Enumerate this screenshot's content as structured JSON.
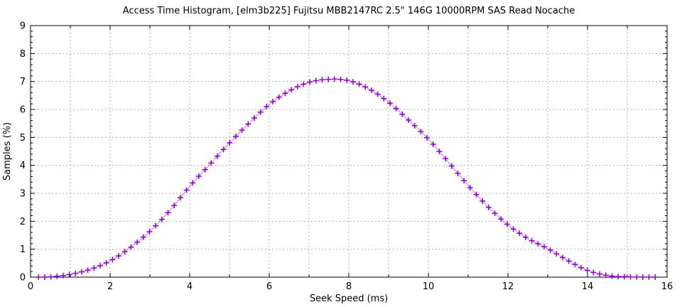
{
  "window": {
    "background": "#ffffff"
  },
  "chart_data": {
    "type": "line",
    "title": "Access Time Histogram, [elm3b225] Fujitsu MBB2147RC 2.5\" 146G 10000RPM SAS Read Nocache",
    "xlabel": "Seek Speed (ms)",
    "ylabel": "Samples (%)",
    "xlim": [
      0,
      16
    ],
    "ylim": [
      0,
      9
    ],
    "x_major_ticks": [
      0,
      2,
      4,
      6,
      8,
      10,
      12,
      14,
      16
    ],
    "x_minor_tick_step": 1,
    "y_major_ticks": [
      0,
      1,
      2,
      3,
      4,
      5,
      6,
      7,
      8,
      9
    ],
    "y_minor_tick_step": 0.2,
    "grid": {
      "shown": true,
      "x_step": 1,
      "y_step": 1,
      "style": "dashed",
      "color": "#b0b0b0"
    },
    "legend": "none",
    "axis_color": "#000000",
    "text_color": "#000000",
    "series": [
      {
        "name": "samples-histogram",
        "color": "#9400d3",
        "line_opacity": 0.45,
        "marker": "plus",
        "curve_points": [
          [
            0.0,
            0
          ],
          [
            0.5,
            0.01
          ],
          [
            1.0,
            0.1
          ],
          [
            1.5,
            0.28
          ],
          [
            2.0,
            0.58
          ],
          [
            2.5,
            1.05
          ],
          [
            3.0,
            1.64
          ],
          [
            3.5,
            2.38
          ],
          [
            4.0,
            3.25
          ],
          [
            4.5,
            4.02
          ],
          [
            5.0,
            4.8
          ],
          [
            5.5,
            5.52
          ],
          [
            6.0,
            6.18
          ],
          [
            6.5,
            6.66
          ],
          [
            7.0,
            6.97
          ],
          [
            7.5,
            7.08
          ],
          [
            8.0,
            7.03
          ],
          [
            8.5,
            6.74
          ],
          [
            9.0,
            6.26
          ],
          [
            9.5,
            5.62
          ],
          [
            10.0,
            4.94
          ],
          [
            10.5,
            4.12
          ],
          [
            11.0,
            3.28
          ],
          [
            11.5,
            2.52
          ],
          [
            12.0,
            1.87
          ],
          [
            12.5,
            1.38
          ],
          [
            13.0,
            1.02
          ],
          [
            13.5,
            0.6
          ],
          [
            14.0,
            0.24
          ],
          [
            14.5,
            0.06
          ],
          [
            15.0,
            0.01
          ],
          [
            15.5,
            0
          ],
          [
            16.0,
            0
          ]
        ],
        "sample_x_start": 0.2,
        "sample_x_step": 0.155,
        "sample_count": 101,
        "peak": {
          "x": 7.5,
          "y": 7.08
        }
      }
    ]
  }
}
